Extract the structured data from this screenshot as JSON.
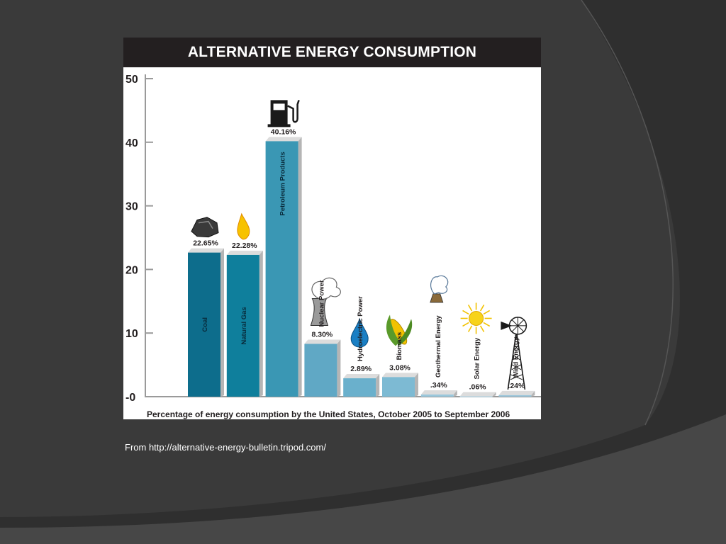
{
  "slide": {
    "source_caption": "From http://alternative-energy-bulletin.tripod.com/",
    "colors": {
      "background": "#3a3a3a",
      "curve_dark": "#2f2f2f",
      "curve_light": "#474747"
    }
  },
  "chart_data": {
    "type": "bar",
    "title": "ALTERNATIVE ENERGY CONSUMPTION",
    "xlabel": "Percentage of energy consumption by the United States, October 2005 to September 2006",
    "ylabel": "",
    "ylim": [
      0,
      50
    ],
    "y_ticks": [
      "-0",
      "10",
      "20",
      "30",
      "40",
      "50"
    ],
    "categories": [
      "Coal",
      "Natural Gas",
      "Petroleum Products",
      "Nuclear Power",
      "Hydroelectric Power",
      "Biomass",
      "Geothermal Energy",
      "Solar Energy",
      "Wind Energy"
    ],
    "values": [
      22.65,
      22.28,
      40.16,
      8.3,
      2.89,
      3.08,
      0.34,
      0.06,
      0.24
    ],
    "value_labels": [
      "22.65%",
      "22.28%",
      "40.16%",
      "8.30%",
      "2.89%",
      "3.08%",
      ".34%",
      ".06%",
      ".24%"
    ],
    "icons": [
      "coal-icon",
      "flame-icon",
      "fuel-pump-icon",
      "cooling-tower-icon",
      "water-drop-icon",
      "corn-icon",
      "geyser-icon",
      "sun-icon",
      "windmill-icon"
    ],
    "colors": [
      "#0d6d8c",
      "#0f7f9c",
      "#3a97b4",
      "#60a8c5",
      "#6ab0cc",
      "#7dbad3",
      "#9ac8dc",
      "#b8dae8",
      "#9ac6da"
    ],
    "grid": false,
    "legend": "none"
  }
}
